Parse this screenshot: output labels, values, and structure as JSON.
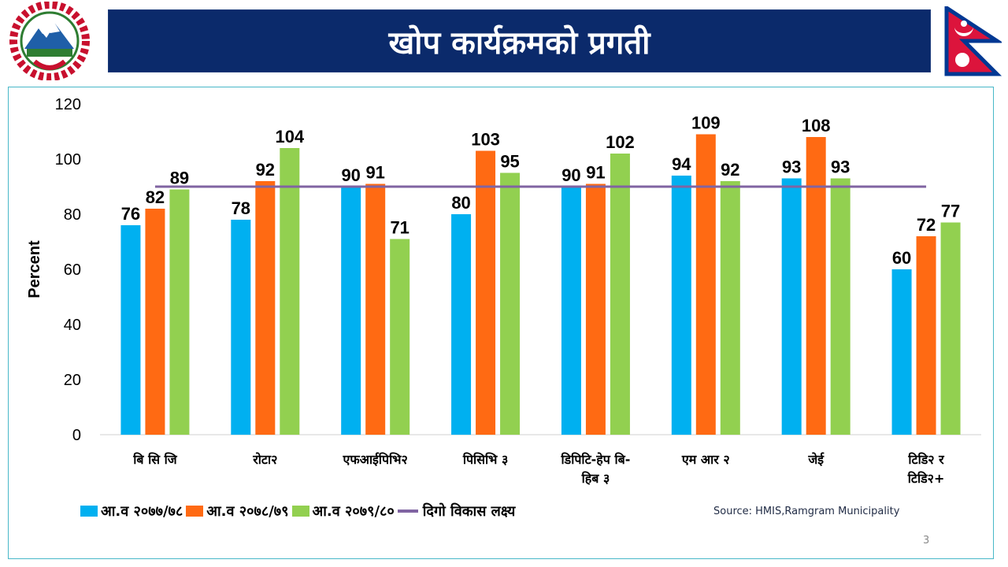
{
  "slide": {
    "title": "खोप कार्यक्रमको प्रगती",
    "source": "Source: HMIS,Ramgram Municipality",
    "page_number": "3"
  },
  "colors": {
    "title_bg": "#0b2a6b",
    "series1": "#00b0f0",
    "series2": "#ff6a13",
    "series3": "#92d050",
    "target": "#8064a2",
    "frame": "#48b8c8"
  },
  "chart_data": {
    "type": "bar",
    "ylabel": "Percent",
    "xlabel": "",
    "ylim": [
      0,
      120
    ],
    "yticks": [
      0,
      20,
      40,
      60,
      80,
      100,
      120
    ],
    "categories": [
      [
        "बि सि जि"
      ],
      [
        "रोटा२"
      ],
      [
        "एफआईपिभि२"
      ],
      [
        "पिसिभि ३"
      ],
      [
        "डिपिटि-हेप बि-",
        "हिब ३"
      ],
      [
        "एम आर २"
      ],
      [
        "जेई"
      ],
      [
        "टिडि२ र",
        "टिडि२+"
      ]
    ],
    "series": [
      {
        "name": "आ.व २०७७/७८",
        "values": [
          76,
          78,
          90,
          80,
          90,
          94,
          93,
          60
        ]
      },
      {
        "name": "आ.व २०७८/७९",
        "values": [
          82,
          92,
          91,
          103,
          91,
          109,
          108,
          72
        ]
      },
      {
        "name": "आ.व २०७९/८०",
        "values": [
          89,
          104,
          71,
          95,
          102,
          92,
          93,
          77
        ]
      }
    ],
    "target_line": {
      "name": "दिगो विकास लक्ष्य",
      "value": 90
    },
    "legend_position": "bottom"
  }
}
